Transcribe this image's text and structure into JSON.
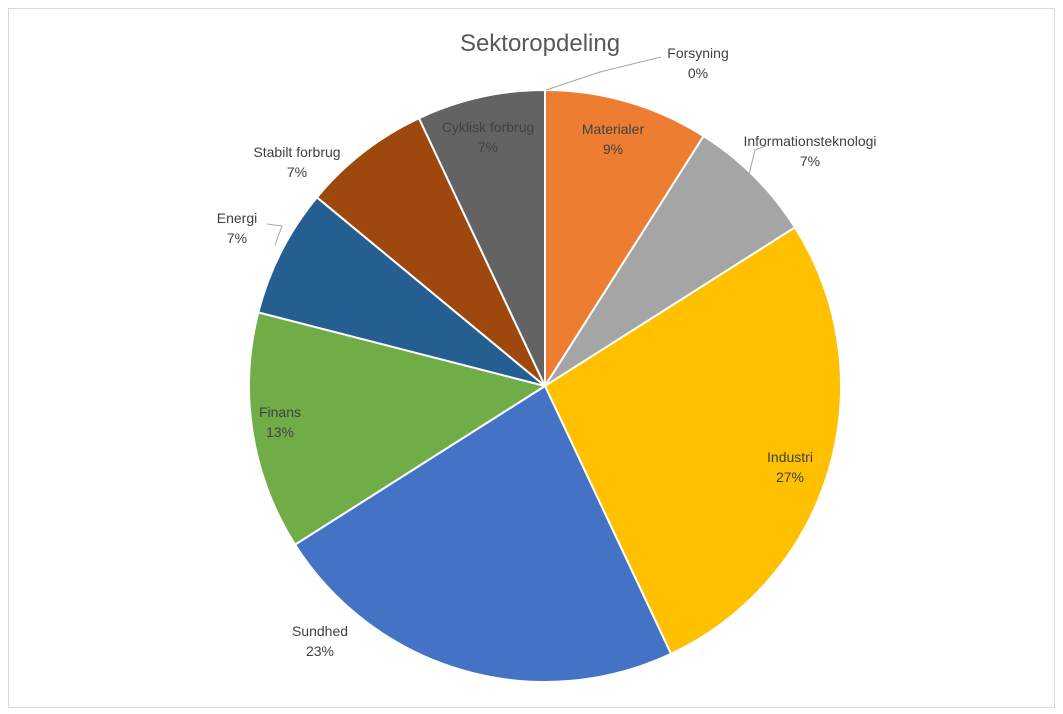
{
  "chart_data": {
    "type": "pie",
    "title": "Sektoropdeling",
    "categories": [
      "Forsyning",
      "Materialer",
      "Informationsteknologi",
      "Industri",
      "Sundhed",
      "Finans",
      "Energi",
      "Stabilt forbrug",
      "Cyklisk forbrug"
    ],
    "values": [
      0,
      9,
      7,
      27,
      23,
      13,
      7,
      7,
      7
    ],
    "value_labels": [
      "0%",
      "9%",
      "7%",
      "27%",
      "23%",
      "13%",
      "7%",
      "7%",
      "7%"
    ],
    "colors": [
      "#5b9bd5",
      "#ed7d31",
      "#a5a5a5",
      "#ffc000",
      "#4472c4",
      "#70ad47",
      "#255e91",
      "#9e480e",
      "#636363"
    ],
    "unit": "%",
    "legend": "none",
    "data_labels": "category name and percentage"
  }
}
